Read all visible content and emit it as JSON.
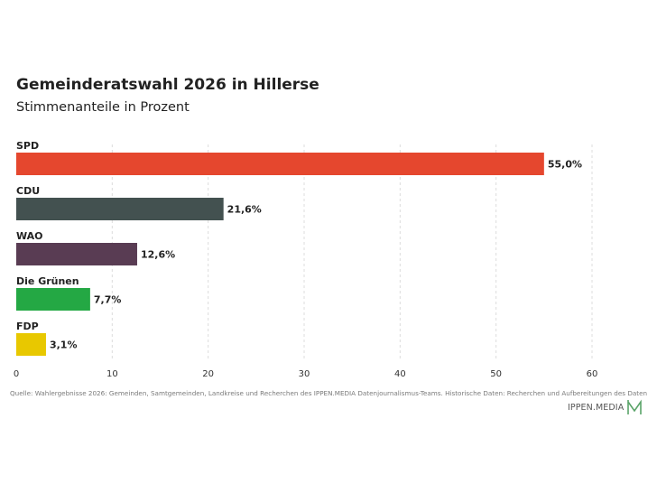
{
  "header": {
    "title": "Gemeinderatswahl 2026 in Hillerse",
    "subtitle": "Stimmenanteile in Prozent"
  },
  "footer": {
    "source": "Quelle: Wahlergebnisse 2026: Gemeinden, Samtgemeinden, Landkreise und Recherchen des IPPEN.MEDIA Datenjournalismus-Teams. Historische Daten: Recherchen und Aufbereitungen des Daten",
    "logo_text": "IPPEN.MEDIA"
  },
  "colors": {
    "logo_accent": "#5aa469"
  },
  "chart_data": {
    "type": "bar",
    "orientation": "horizontal",
    "title": "Gemeinderatswahl 2026 in Hillerse",
    "subtitle": "Stimmenanteile in Prozent",
    "categories": [
      "SPD",
      "CDU",
      "WAO",
      "Die Grünen",
      "FDP"
    ],
    "values": [
      55.0,
      21.6,
      12.6,
      7.7,
      3.1
    ],
    "value_labels": [
      "55,0%",
      "21,6%",
      "12,6%",
      "7,7%",
      "3,1%"
    ],
    "colors": [
      "#e5472e",
      "#435150",
      "#593c53",
      "#24a844",
      "#e8c800"
    ],
    "xlim": [
      0,
      60
    ],
    "xticks": [
      0,
      10,
      20,
      30,
      40,
      50,
      60
    ],
    "xlabel": "",
    "ylabel": "",
    "grid": true,
    "legend": "none"
  }
}
